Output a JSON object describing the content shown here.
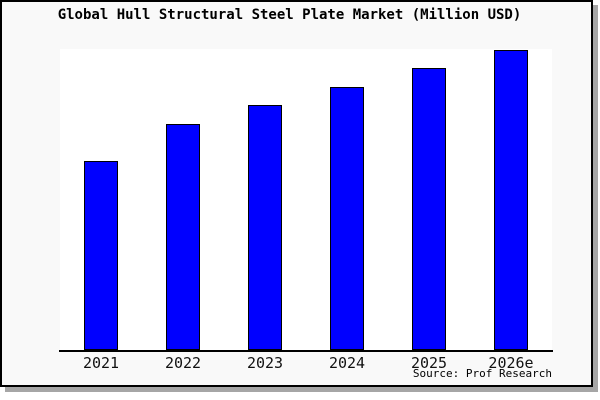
{
  "chart_data": {
    "type": "bar",
    "title": "Global Hull Structural Steel Plate Market (Million USD)",
    "categories": [
      "2021",
      "2022",
      "2023",
      "2024",
      "2025",
      "2026e"
    ],
    "values": [
      63,
      75.3,
      81.7,
      87.7,
      94,
      100
    ],
    "value_note": "y-axis has no ticks or labels; values are relative bar heights with 2026e = 100",
    "xlabel": "",
    "ylabel": "",
    "grid": false,
    "legend": false,
    "bar_color": "#0000ff",
    "bar_border_color": "#000000",
    "axis_color": "#000000",
    "plot_background": "#ffffff",
    "card_background": "#f9f9f9",
    "source": "Source: Prof Research"
  }
}
